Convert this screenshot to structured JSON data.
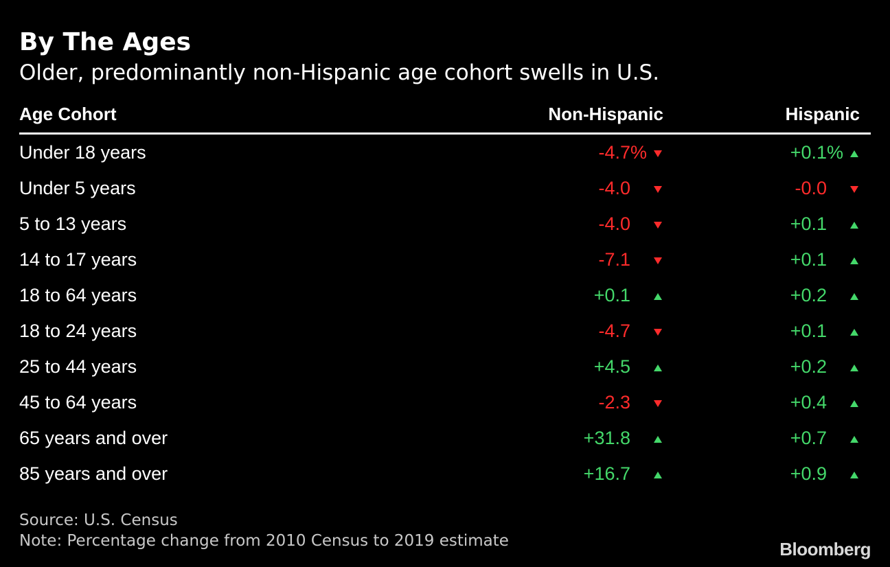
{
  "title": "By The Ages",
  "subtitle": "Older, predominantly non-Hispanic age cohort swells in U.S.",
  "colors": {
    "positive": "#44d86a",
    "negative": "#ff2b2b",
    "background": "#000000",
    "text": "#ffffff"
  },
  "chart_data": {
    "type": "table",
    "columns": [
      "Age Cohort",
      "Non-Hispanic",
      "Hispanic"
    ],
    "rows": [
      {
        "label": "Under 18 years",
        "non_hispanic": "-4.7%",
        "hispanic": "+0.1%",
        "nh_value": -4.7,
        "h_value": 0.1,
        "nh_dir": "down",
        "h_dir": "up",
        "pct": true
      },
      {
        "label": "Under 5 years",
        "non_hispanic": "-4.0",
        "hispanic": "-0.0",
        "nh_value": -4.0,
        "h_value": -0.0,
        "nh_dir": "down",
        "h_dir": "down",
        "pct": false
      },
      {
        "label": "5 to 13 years",
        "non_hispanic": "-4.0",
        "hispanic": "+0.1",
        "nh_value": -4.0,
        "h_value": 0.1,
        "nh_dir": "down",
        "h_dir": "up",
        "pct": false
      },
      {
        "label": "14 to 17 years",
        "non_hispanic": "-7.1",
        "hispanic": "+0.1",
        "nh_value": -7.1,
        "h_value": 0.1,
        "nh_dir": "down",
        "h_dir": "up",
        "pct": false
      },
      {
        "label": "18 to 64 years",
        "non_hispanic": "+0.1",
        "hispanic": "+0.2",
        "nh_value": 0.1,
        "h_value": 0.2,
        "nh_dir": "up",
        "h_dir": "up",
        "pct": false
      },
      {
        "label": "18 to 24 years",
        "non_hispanic": "-4.7",
        "hispanic": "+0.1",
        "nh_value": -4.7,
        "h_value": 0.1,
        "nh_dir": "down",
        "h_dir": "up",
        "pct": false
      },
      {
        "label": "25 to 44 years",
        "non_hispanic": "+4.5",
        "hispanic": "+0.2",
        "nh_value": 4.5,
        "h_value": 0.2,
        "nh_dir": "up",
        "h_dir": "up",
        "pct": false
      },
      {
        "label": "45 to 64 years",
        "non_hispanic": "-2.3",
        "hispanic": "+0.4",
        "nh_value": -2.3,
        "h_value": 0.4,
        "nh_dir": "down",
        "h_dir": "up",
        "pct": false
      },
      {
        "label": "65 years and over",
        "non_hispanic": "+31.8",
        "hispanic": "+0.7",
        "nh_value": 31.8,
        "h_value": 0.7,
        "nh_dir": "up",
        "h_dir": "up",
        "pct": false
      },
      {
        "label": "85 years and over",
        "non_hispanic": "+16.7",
        "hispanic": "+0.9",
        "nh_value": 16.7,
        "h_value": 0.9,
        "nh_dir": "up",
        "h_dir": "up",
        "pct": false
      }
    ]
  },
  "source": "Source: U.S. Census",
  "note": "Note: Percentage change from 2010 Census to 2019 estimate",
  "logo": "Bloomberg"
}
